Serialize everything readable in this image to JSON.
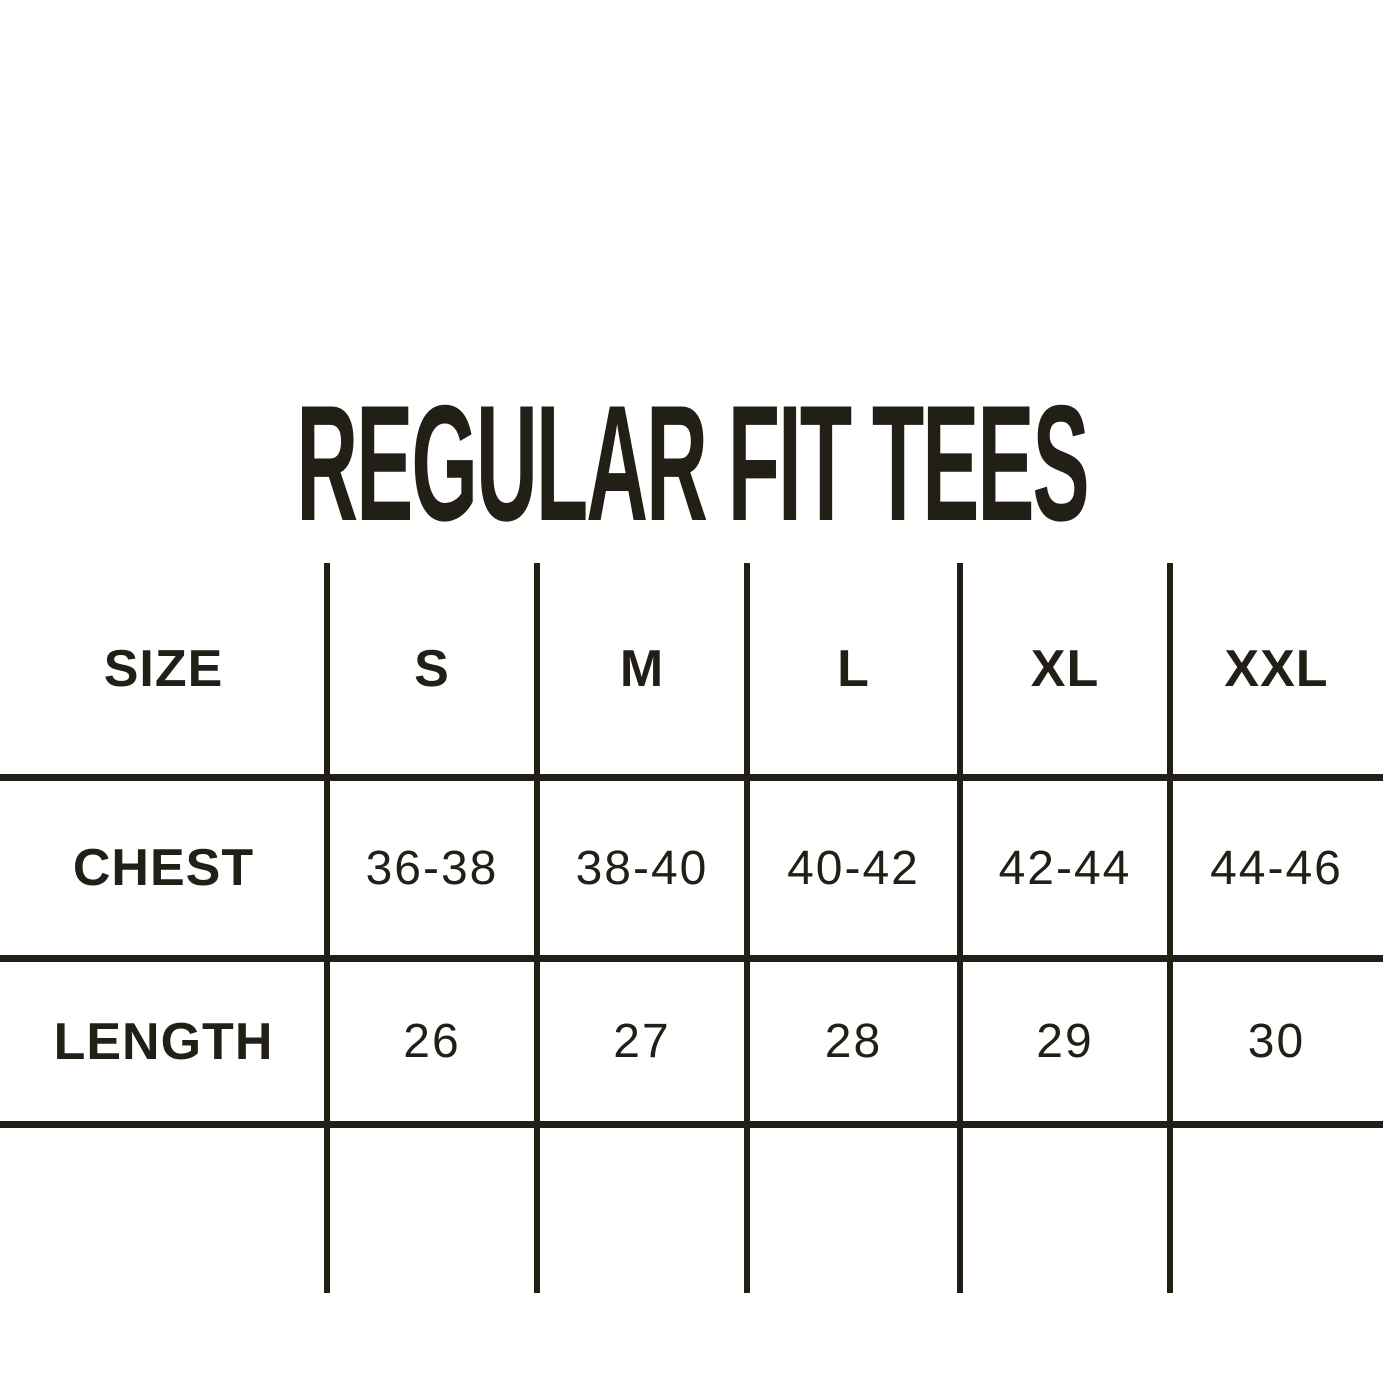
{
  "colors": {
    "background": "#ffffff",
    "ink": "#221f17"
  },
  "chart_data": {
    "type": "table",
    "title": "REGULAR FIT TEES",
    "columns": [
      "SIZE",
      "S",
      "M",
      "L",
      "XL",
      "XXL"
    ],
    "rows": [
      [
        "CHEST",
        "36-38",
        "38-40",
        "40-42",
        "42-44",
        "44-46"
      ],
      [
        "LENGTH",
        "26",
        "27",
        "28",
        "29",
        "30"
      ]
    ],
    "layout_hints": {
      "header_row_labels_bold": true,
      "value_rows_regular_weight": true,
      "gridlines": "full-width horizontal rules; vertical rules overhang rows top and bottom"
    }
  }
}
